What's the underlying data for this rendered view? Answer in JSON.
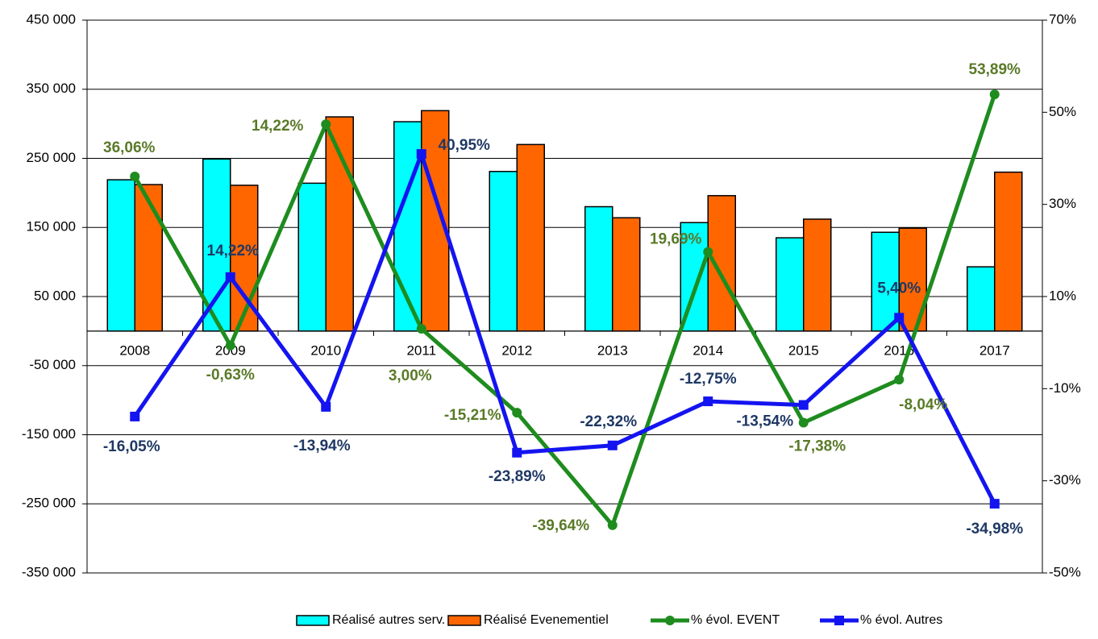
{
  "chart_data": {
    "type": "bar",
    "categories": [
      "2008",
      "2009",
      "2010",
      "2011",
      "2012",
      "2013",
      "2014",
      "2015",
      "2016",
      "2017"
    ],
    "series": [
      {
        "name": "Réalisé autres serv.",
        "color": "#00ffff",
        "values": [
          219000,
          249000,
          214000,
          303000,
          231000,
          180000,
          157000,
          135000,
          143000,
          93000
        ]
      },
      {
        "name": "Réalisé Evenementiel",
        "color": "#ff6600",
        "values": [
          212000,
          211000,
          310000,
          319000,
          270000,
          164000,
          196000,
          162000,
          149000,
          230000
        ]
      },
      {
        "name": "% évol. EVENT",
        "type": "line",
        "axis": "y2",
        "color": "#1e8c1e",
        "label_color": "#5a7a28",
        "values": [
          36.06,
          -0.63,
          47.4,
          3.0,
          -15.21,
          -39.64,
          19.69,
          -17.38,
          -8.04,
          53.89
        ],
        "value_labels": [
          "36,06%",
          "-0,63%",
          null,
          "3,00%",
          "-15,21%",
          "-39,64%",
          "19,69%",
          "-17,38%",
          "-8,04%",
          "53,89%"
        ]
      },
      {
        "name": "% évol. Autres",
        "type": "line",
        "axis": "y2",
        "color": "#1414f0",
        "label_color": "#1f3864",
        "values": [
          -16.05,
          14.22,
          -13.94,
          40.95,
          -23.89,
          -22.32,
          -12.75,
          -13.54,
          5.4,
          -34.98
        ],
        "value_labels": [
          "-16,05%",
          "14,22%",
          "-13,94%",
          "40,95%",
          "-23,89%",
          "-22,32%",
          "-12,75%",
          "-13,54%",
          "5,40%",
          "-34,98%"
        ]
      }
    ],
    "annotations": [
      "14,22%"
    ],
    "ylim": [
      -350000,
      450000
    ],
    "yticks": [
      {
        "value": -350000,
        "label": "-350 000"
      },
      {
        "value": -250000,
        "label": "-250 000"
      },
      {
        "value": -150000,
        "label": "-150 000"
      },
      {
        "value": -50000,
        "label": "-50 000"
      },
      {
        "value": 50000,
        "label": "50 000"
      },
      {
        "value": 150000,
        "label": "150 000"
      },
      {
        "value": 250000,
        "label": "250 000"
      },
      {
        "value": 350000,
        "label": "350 000"
      },
      {
        "value": 450000,
        "label": "450 000"
      }
    ],
    "y2lim": [
      -50,
      70
    ],
    "y2ticks": [
      {
        "value": -50,
        "label": "-50%"
      },
      {
        "value": -30,
        "label": "-30%"
      },
      {
        "value": -10,
        "label": "-10%"
      },
      {
        "value": 10,
        "label": "10%"
      },
      {
        "value": 30,
        "label": "30%"
      },
      {
        "value": 50,
        "label": "50%"
      },
      {
        "value": 70,
        "label": "70%"
      }
    ],
    "grid": true,
    "legend": "bottom"
  }
}
